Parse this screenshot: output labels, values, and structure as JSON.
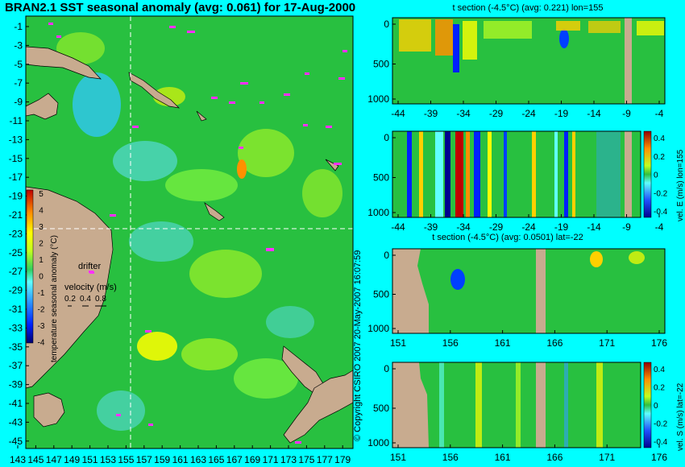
{
  "map": {
    "title": "BRAN2.1 SST seasonal anomaly (avg: 0.061) for 17-Aug-2000",
    "lat_ticks": [
      "-1",
      "-3",
      "-5",
      "-7",
      "-9",
      "-11",
      "-13",
      "-15",
      "-17",
      "-19",
      "-21",
      "-23",
      "-25",
      "-27",
      "-29",
      "-31",
      "-33",
      "-35",
      "-37",
      "-39",
      "-41",
      "-43",
      "-45"
    ],
    "lon_ticks": [
      "143",
      "145",
      "147",
      "149",
      "151",
      "153",
      "155",
      "157",
      "159",
      "161",
      "163",
      "165",
      "167",
      "169",
      "171",
      "173",
      "175",
      "177",
      "179"
    ],
    "colorbar_label": "temperature seasonal anomaly (°C)",
    "colorbar_ticks": [
      "5",
      "4",
      "3",
      "2",
      "1",
      "0",
      "-1",
      "-2",
      "-3",
      "-4"
    ],
    "drifter_label": "drifter",
    "velocity_label": "velocity (m/s)",
    "velocity_scale": [
      "0.2",
      "0.4",
      "0.8"
    ],
    "crosshair": {
      "lon": 155,
      "lat": -22
    }
  },
  "panels": [
    {
      "title": "t section (-4.5°C) (avg: 0.221) lon=155",
      "x_ticks": [
        "-44",
        "-39",
        "-34",
        "-29",
        "-24",
        "-19",
        "-14",
        "-9",
        "-4"
      ],
      "y_ticks": [
        "0",
        "500",
        "1000"
      ]
    },
    {
      "title": "",
      "x_ticks": [
        "-44",
        "-39",
        "-34",
        "-29",
        "-24",
        "-19",
        "-14",
        "-9",
        "-4"
      ],
      "y_ticks": [
        "0",
        "500",
        "1000"
      ],
      "colorbar_label": "vel. E (m/s) lon=155",
      "colorbar_ticks": [
        "0.4",
        "0.2",
        "0",
        "-0.2",
        "-0.4"
      ]
    },
    {
      "title": "t section (-4.5°C) (avg: 0.0501) lat=-22",
      "x_ticks": [
        "151",
        "156",
        "161",
        "166",
        "171",
        "176"
      ],
      "y_ticks": [
        "0",
        "500",
        "1000"
      ]
    },
    {
      "title": "",
      "x_ticks": [
        "151",
        "156",
        "161",
        "166",
        "171",
        "176"
      ],
      "y_ticks": [
        "0",
        "500",
        "1000"
      ],
      "colorbar_label": "vel. S (m/s) lat=-22",
      "colorbar_ticks": [
        "0.4",
        "0.2",
        "0",
        "-0.2",
        "-0.4"
      ]
    }
  ],
  "credit": "© Copyright CSIRO 2007 20-May-2007 16:07:59",
  "colors": {
    "background": "#00ffff",
    "land": "#c8ab8f",
    "ocean": "#28c040",
    "drifter": "#ff30ff"
  },
  "chart_data": {
    "type": "heatmap",
    "title": "BRAN2.1 SST seasonal anomaly (avg: 0.061) for 17-Aug-2000",
    "x_range": [
      142,
      180
    ],
    "y_range": [
      -45,
      0
    ],
    "colorbar_range": [
      -4,
      5
    ]
  }
}
